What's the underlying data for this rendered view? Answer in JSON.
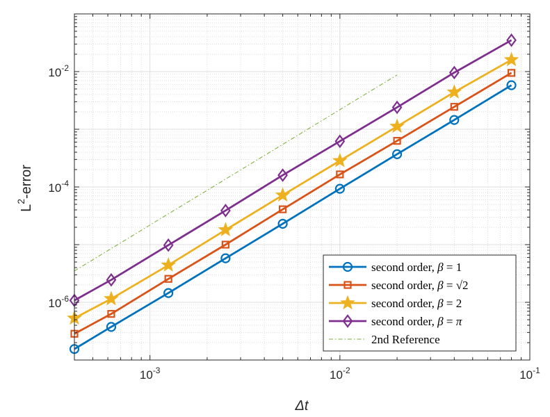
{
  "chart_data": {
    "type": "line",
    "xscale": "log",
    "yscale": "log",
    "xlabel": "Δt",
    "ylabel": {
      "base": "L",
      "sup": "2",
      "rest": "-error"
    },
    "xlim": [
      0.0004,
      0.1
    ],
    "ylim": [
      1e-07,
      0.1
    ],
    "grid": true,
    "minor_grid": true,
    "x_ticks": [
      {
        "value": 0.001,
        "base": "10",
        "exp": "-3"
      },
      {
        "value": 0.01,
        "base": "10",
        "exp": "-2"
      },
      {
        "value": 0.1,
        "base": "10",
        "exp": "-1"
      }
    ],
    "y_ticks": [
      {
        "value": 1e-06,
        "base": "10",
        "exp": "-6"
      },
      {
        "value": 0.0001,
        "base": "10",
        "exp": "-4"
      },
      {
        "value": 0.01,
        "base": "10",
        "exp": "-2"
      }
    ],
    "x": [
      0.0004,
      0.000625,
      0.00125,
      0.0025,
      0.005,
      0.01,
      0.02,
      0.04,
      0.08
    ],
    "series": [
      {
        "name": "second order, β = 1",
        "label": {
          "prefix": "second order, ",
          "symbol": "β",
          "eq": " = ",
          "value": "1"
        },
        "color": "#0072BD",
        "marker": "circle",
        "values": [
          1.55e-07,
          3.75e-07,
          1.45e-06,
          5.8e-06,
          2.3e-05,
          9.3e-05,
          0.00037,
          0.00145,
          0.0058
        ]
      },
      {
        "name": "second order, β = √2",
        "label": {
          "prefix": "second order, ",
          "symbol": "β",
          "eq": " = ",
          "value": "√2"
        },
        "color": "#D95319",
        "marker": "square",
        "values": [
          2.85e-07,
          6.3e-07,
          2.55e-06,
          1e-05,
          4.1e-05,
          0.000165,
          0.00063,
          0.00245,
          0.0095
        ]
      },
      {
        "name": "second order, β = 2",
        "label": {
          "prefix": "second order, ",
          "symbol": "β",
          "eq": " = ",
          "value": "2"
        },
        "color": "#EDB120",
        "marker": "star",
        "values": [
          5.3e-07,
          1.15e-06,
          4.4e-06,
          1.8e-05,
          7.2e-05,
          0.000285,
          0.00112,
          0.0044,
          0.016
        ]
      },
      {
        "name": "second order, β = π",
        "label": {
          "prefix": "second order, ",
          "symbol": "β",
          "eq": " = ",
          "value": "π"
        },
        "color": "#7E2F8E",
        "marker": "diamond",
        "values": [
          1.08e-06,
          2.45e-06,
          9.8e-06,
          3.9e-05,
          0.00016,
          0.00062,
          0.0024,
          0.0096,
          0.035
        ]
      }
    ],
    "reference": {
      "name": "2nd Reference",
      "color": "#77AC30",
      "style": "dash-dot",
      "x": [
        0.0004,
        0.02
      ],
      "values": [
        3.5e-06,
        0.00875
      ]
    },
    "legend_position": "bottom-right"
  }
}
